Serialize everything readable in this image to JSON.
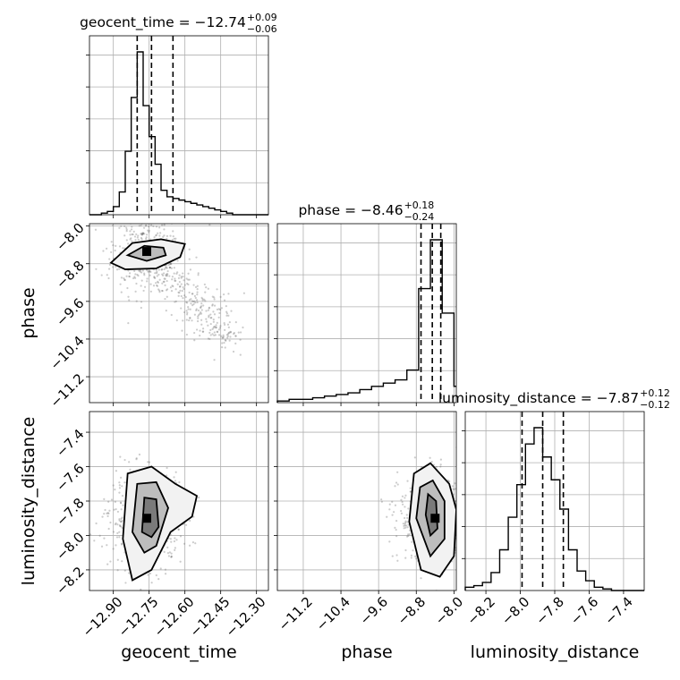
{
  "chart_data": {
    "type": "corner",
    "parameters": [
      "geocent_time",
      "phase",
      "luminosity_distance"
    ],
    "titles": [
      {
        "param": "geocent_time",
        "text": "geocent_time = −12.74",
        "plus": "+0.09",
        "minus": "−0.06"
      },
      {
        "param": "phase",
        "text": "phase = −8.46",
        "plus": "+0.18",
        "minus": "−0.24"
      },
      {
        "param": "luminosity_distance",
        "text": "luminosity_distance = −7.87",
        "plus": "+0.12",
        "minus": "−0.12"
      }
    ],
    "ranges": {
      "geocent_time": [
        -13.0,
        -12.25
      ],
      "phase": [
        -11.75,
        -7.95
      ],
      "luminosity_distance": [
        -8.32,
        -7.28
      ]
    },
    "ticks": {
      "geocent_time": [
        {
          "v": -12.9,
          "label": "−12.90"
        },
        {
          "v": -12.75,
          "label": "−12.75"
        },
        {
          "v": -12.6,
          "label": "−12.60"
        },
        {
          "v": -12.45,
          "label": "−12.45"
        },
        {
          "v": -12.3,
          "label": "−12.30"
        }
      ],
      "phase": [
        {
          "v": -11.2,
          "label": "−11.2"
        },
        {
          "v": -10.4,
          "label": "−10.4"
        },
        {
          "v": -9.6,
          "label": "−9.6"
        },
        {
          "v": -8.8,
          "label": "−8.8"
        },
        {
          "v": -8.0,
          "label": "−8.0"
        }
      ],
      "luminosity_distance": [
        {
          "v": -8.2,
          "label": "−8.2"
        },
        {
          "v": -8.0,
          "label": "−8.0"
        },
        {
          "v": -7.8,
          "label": "−7.8"
        },
        {
          "v": -7.6,
          "label": "−7.6"
        },
        {
          "v": -7.4,
          "label": "−7.4"
        }
      ]
    },
    "quantiles": {
      "geocent_time": [
        -12.8,
        -12.74,
        -12.65
      ],
      "phase": [
        -8.7,
        -8.46,
        -8.28
      ],
      "luminosity_distance": [
        -7.99,
        -7.87,
        -7.75
      ]
    },
    "histograms": {
      "geocent_time": {
        "edges": [
          -13.0,
          -12.975,
          -12.95,
          -12.925,
          -12.9,
          -12.875,
          -12.85,
          -12.825,
          -12.8,
          -12.775,
          -12.75,
          -12.725,
          -12.7,
          -12.675,
          -12.65,
          -12.625,
          -12.6,
          -12.575,
          -12.55,
          -12.525,
          -12.5,
          -12.475,
          -12.45,
          -12.425,
          -12.4,
          -12.375,
          -12.35,
          -12.325,
          -12.3,
          -12.275,
          -12.25
        ],
        "counts": [
          0,
          0,
          1,
          2,
          5,
          14,
          39,
          72,
          100,
          67,
          48,
          31,
          15,
          11,
          10,
          9,
          8,
          7,
          6,
          5,
          4,
          3,
          2,
          1,
          0,
          0,
          0,
          0,
          0,
          0
        ]
      },
      "phase": {
        "edges": [
          -11.75,
          -11.5,
          -11.25,
          -11.0,
          -10.75,
          -10.5,
          -10.25,
          -10.0,
          -9.75,
          -9.5,
          -9.25,
          -9.0,
          -8.75,
          -8.5,
          -8.25,
          -8.0,
          -7.95
        ],
        "counts": [
          1,
          2,
          2,
          3,
          4,
          5,
          6,
          8,
          10,
          12,
          14,
          20,
          70,
          100,
          55,
          10
        ]
      },
      "luminosity_distance": {
        "edges": [
          -8.32,
          -8.27,
          -8.22,
          -8.17,
          -8.12,
          -8.07,
          -8.02,
          -7.97,
          -7.92,
          -7.87,
          -7.82,
          -7.77,
          -7.72,
          -7.67,
          -7.62,
          -7.57,
          -7.52,
          -7.47,
          -7.42,
          -7.37,
          -7.32,
          -7.28
        ],
        "counts": [
          2,
          3,
          5,
          11,
          25,
          45,
          65,
          90,
          100,
          82,
          68,
          50,
          25,
          12,
          6,
          2,
          1,
          0,
          0,
          0,
          0
        ]
      }
    },
    "scatter_2d": [
      {
        "x": "geocent_time",
        "y": "phase",
        "peak": [
          -12.76,
          -8.54
        ],
        "contours": [
          [
            [
              -12.91,
              -8.78
            ],
            [
              -12.82,
              -8.36
            ],
            [
              -12.7,
              -8.28
            ],
            [
              -12.6,
              -8.38
            ],
            [
              -12.62,
              -8.66
            ],
            [
              -12.72,
              -8.9
            ],
            [
              -12.85,
              -8.92
            ]
          ],
          [
            [
              -12.84,
              -8.62
            ],
            [
              -12.77,
              -8.42
            ],
            [
              -12.69,
              -8.46
            ],
            [
              -12.68,
              -8.62
            ],
            [
              -12.76,
              -8.74
            ]
          ]
        ]
      },
      {
        "x": "geocent_time",
        "y": "luminosity_distance",
        "peak": [
          -12.76,
          -7.9
        ],
        "contours": [
          [
            [
              -12.86,
              -8.02
            ],
            [
              -12.84,
              -7.64
            ],
            [
              -12.74,
              -7.6
            ],
            [
              -12.64,
              -7.7
            ],
            [
              -12.55,
              -7.77
            ],
            [
              -12.57,
              -7.89
            ],
            [
              -12.66,
              -7.98
            ],
            [
              -12.74,
              -8.2
            ],
            [
              -12.82,
              -8.26
            ]
          ],
          [
            [
              -12.82,
              -7.98
            ],
            [
              -12.8,
              -7.7
            ],
            [
              -12.72,
              -7.69
            ],
            [
              -12.67,
              -7.84
            ],
            [
              -12.72,
              -8.06
            ],
            [
              -12.77,
              -8.1
            ]
          ],
          [
            [
              -12.78,
              -7.98
            ],
            [
              -12.77,
              -7.78
            ],
            [
              -12.72,
              -7.79
            ],
            [
              -12.71,
              -7.95
            ],
            [
              -12.74,
              -8.01
            ]
          ]
        ]
      },
      {
        "x": "phase",
        "y": "luminosity_distance",
        "peak": [
          -8.4,
          -7.9
        ],
        "contours": [
          [
            [
              -8.95,
              -7.92
            ],
            [
              -8.85,
              -7.64
            ],
            [
              -8.5,
              -7.58
            ],
            [
              -8.1,
              -7.7
            ],
            [
              -7.95,
              -7.85
            ],
            [
              -8.0,
              -8.12
            ],
            [
              -8.3,
              -8.24
            ],
            [
              -8.7,
              -8.2
            ]
          ],
          [
            [
              -8.8,
              -7.9
            ],
            [
              -8.72,
              -7.72
            ],
            [
              -8.45,
              -7.68
            ],
            [
              -8.2,
              -7.8
            ],
            [
              -8.2,
              -8.02
            ],
            [
              -8.5,
              -8.12
            ]
          ],
          [
            [
              -8.6,
              -7.88
            ],
            [
              -8.55,
              -7.76
            ],
            [
              -8.38,
              -7.8
            ],
            [
              -8.35,
              -7.96
            ],
            [
              -8.5,
              -8.0
            ]
          ]
        ]
      }
    ]
  }
}
